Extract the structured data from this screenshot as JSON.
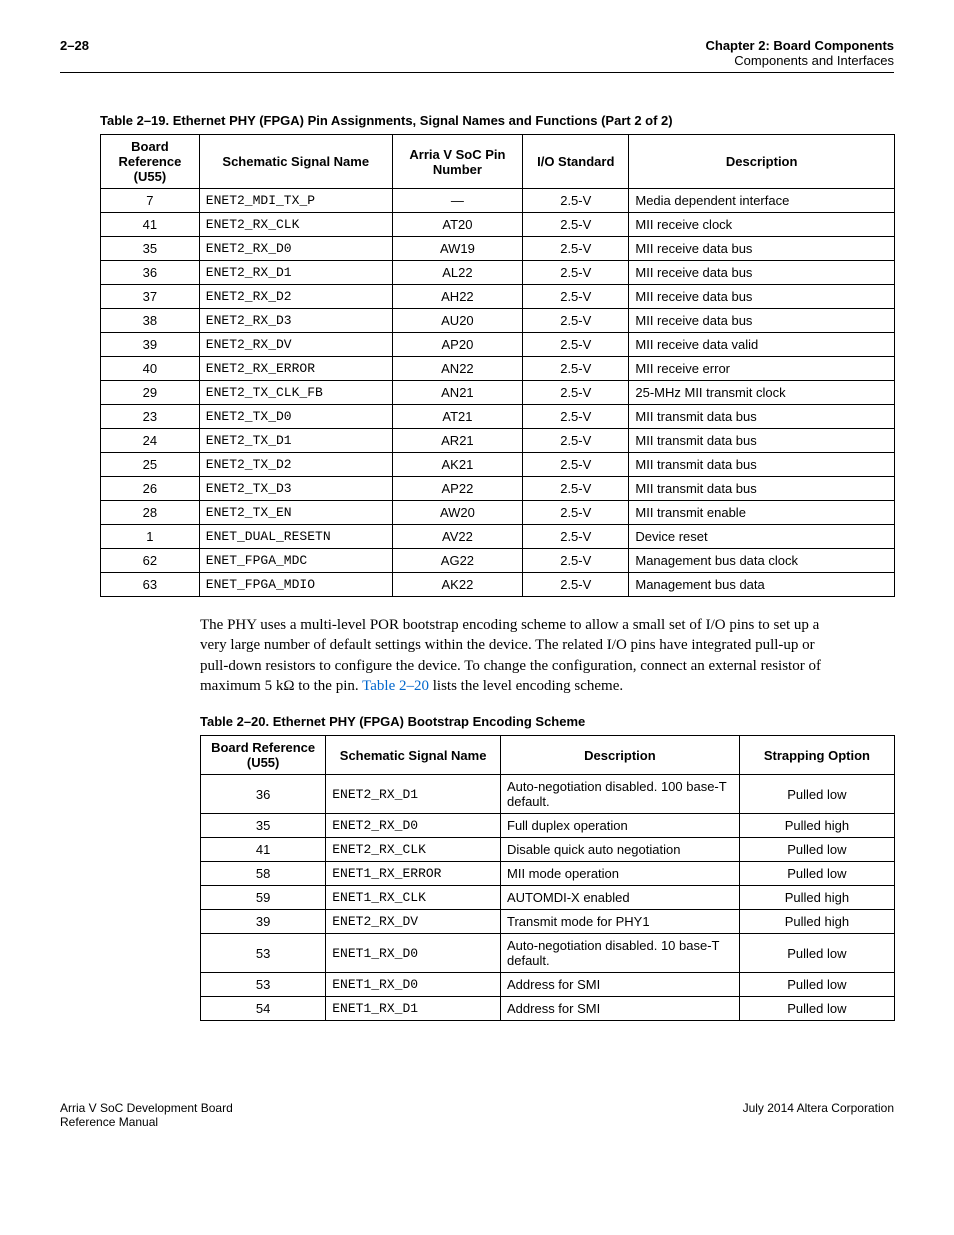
{
  "header": {
    "page_num": "2–28",
    "chapter": "Chapter 2:  Board Components",
    "section": "Components and Interfaces"
  },
  "table1": {
    "caption": "Table 2–19.  Ethernet PHY (FPGA) Pin Assignments, Signal Names and Functions  (Part 2 of 2)",
    "columns": [
      "Board Reference (U55)",
      "Schematic Signal Name",
      "Arria V SoC Pin Number",
      "I/O Standard",
      "Description"
    ],
    "rows": [
      [
        "7",
        "ENET2_MDI_TX_P",
        "—",
        "2.5-V",
        "Media dependent interface"
      ],
      [
        "41",
        "ENET2_RX_CLK",
        "AT20",
        "2.5-V",
        "MII receive clock"
      ],
      [
        "35",
        "ENET2_RX_D0",
        "AW19",
        "2.5-V",
        "MII receive data bus"
      ],
      [
        "36",
        "ENET2_RX_D1",
        "AL22",
        "2.5-V",
        "MII receive data bus"
      ],
      [
        "37",
        "ENET2_RX_D2",
        "AH22",
        "2.5-V",
        "MII receive data bus"
      ],
      [
        "38",
        "ENET2_RX_D3",
        "AU20",
        "2.5-V",
        "MII receive data bus"
      ],
      [
        "39",
        "ENET2_RX_DV",
        "AP20",
        "2.5-V",
        "MII receive data valid"
      ],
      [
        "40",
        "ENET2_RX_ERROR",
        "AN22",
        "2.5-V",
        "MII receive error"
      ],
      [
        "29",
        "ENET2_TX_CLK_FB",
        "AN21",
        "2.5-V",
        "25-MHz MII transmit clock"
      ],
      [
        "23",
        "ENET2_TX_D0",
        "AT21",
        "2.5-V",
        "MII transmit data bus"
      ],
      [
        "24",
        "ENET2_TX_D1",
        "AR21",
        "2.5-V",
        "MII transmit data bus"
      ],
      [
        "25",
        "ENET2_TX_D2",
        "AK21",
        "2.5-V",
        "MII transmit data bus"
      ],
      [
        "26",
        "ENET2_TX_D3",
        "AP22",
        "2.5-V",
        "MII transmit data bus"
      ],
      [
        "28",
        "ENET2_TX_EN",
        "AW20",
        "2.5-V",
        "MII transmit enable"
      ],
      [
        "1",
        "ENET_DUAL_RESETN",
        "AV22",
        "2.5-V",
        "Device reset"
      ],
      [
        "62",
        "ENET_FPGA_MDC",
        "AG22",
        "2.5-V",
        "Management bus data clock"
      ],
      [
        "63",
        "ENET_FPGA_MDIO",
        "AK22",
        "2.5-V",
        "Management bus data"
      ]
    ],
    "col_widths": [
      "90px",
      "190px",
      "130px",
      "100px",
      "285px"
    ]
  },
  "paragraph": {
    "text_before_link": "The PHY uses a multi-level POR bootstrap encoding scheme to allow a small set of I/O pins to set up a very large number of default settings within the device. The related I/O pins have integrated pull-up or pull-down resistors to configure the device. To change the configuration, connect an external resistor of maximum 5 kΩ to the pin. ",
    "link_text": "Table 2–20",
    "text_after_link": " lists the level encoding scheme."
  },
  "table2": {
    "caption": "Table 2–20.  Ethernet PHY (FPGA) Bootstrap Encoding Scheme",
    "columns": [
      "Board Reference (U55)",
      "Schematic Signal Name",
      "Description",
      "Strapping Option"
    ],
    "rows": [
      [
        "36",
        "ENET2_RX_D1",
        "Auto-negotiation disabled. 100 base-T default.",
        "Pulled low"
      ],
      [
        "35",
        "ENET2_RX_D0",
        "Full duplex operation",
        "Pulled high"
      ],
      [
        "41",
        "ENET2_RX_CLK",
        "Disable quick auto negotiation",
        "Pulled low"
      ],
      [
        "58",
        "ENET1_RX_ERROR",
        "MII mode operation",
        "Pulled low"
      ],
      [
        "59",
        "ENET1_RX_CLK",
        "AUTOMDI-X enabled",
        "Pulled high"
      ],
      [
        "39",
        "ENET2_RX_DV",
        "Transmit mode for PHY1",
        "Pulled high"
      ],
      [
        "53",
        "ENET1_RX_D0",
        "Auto-negotiation disabled. 10 base-T default.",
        "Pulled low"
      ],
      [
        "53",
        "ENET1_RX_D0",
        "Address for SMI",
        "Pulled low"
      ],
      [
        "54",
        "ENET1_RX_D1",
        "Address for SMI",
        "Pulled low"
      ]
    ],
    "col_widths": [
      "120px",
      "170px",
      "250px",
      "155px"
    ]
  },
  "footer": {
    "left1": "Arria V SoC Development Board",
    "left2": "Reference Manual",
    "right": "July 2014   Altera Corporation"
  }
}
